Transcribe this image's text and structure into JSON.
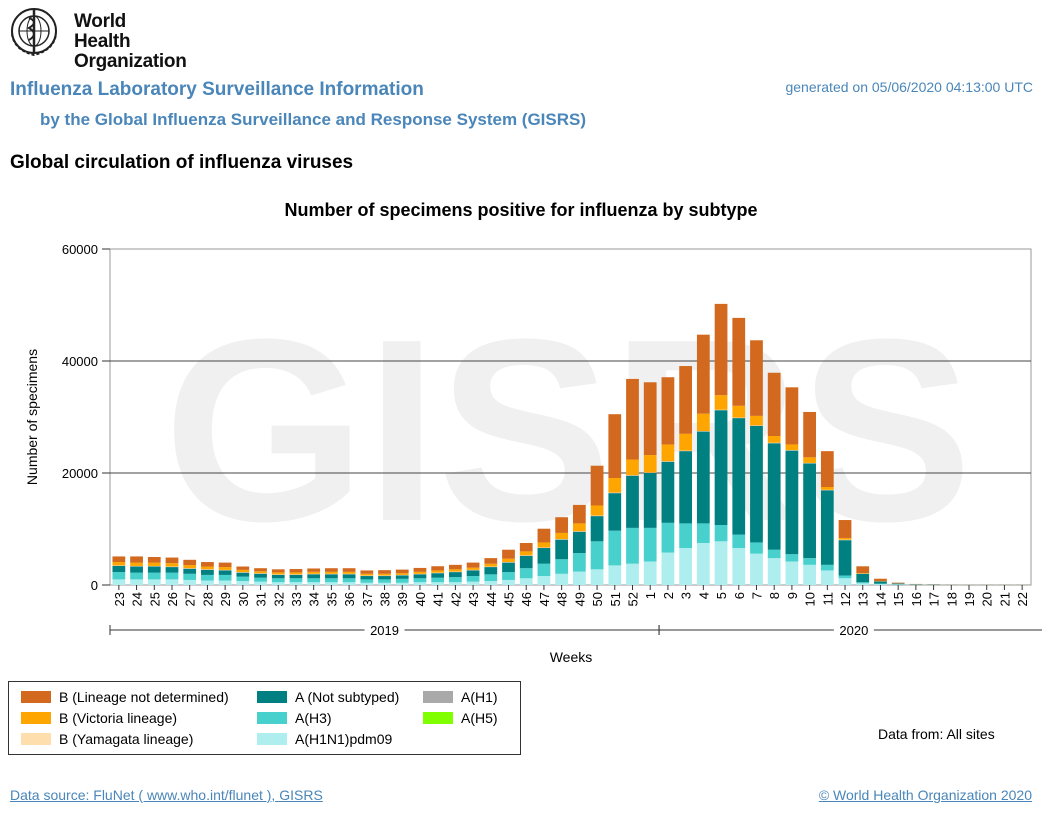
{
  "header": {
    "logo_text_line1": "World Health",
    "logo_text_line2": "Organization",
    "title": "Influenza Laboratory Surveillance Information",
    "subtitle": "by the Global Influenza Surveillance and Response System (GISRS)",
    "generated": "generated on 05/06/2020 04:13:00 UTC",
    "section_title": "Global circulation of influenza viruses"
  },
  "watermark": "GISRS",
  "legend": {
    "items": [
      {
        "label": "B (Lineage not determined)",
        "color": "#d2691e"
      },
      {
        "label": "B (Victoria lineage)",
        "color": "#ffa500"
      },
      {
        "label": "B (Yamagata lineage)",
        "color": "#ffdead"
      },
      {
        "label": "A (Not subtyped)",
        "color": "#008080"
      },
      {
        "label": "A(H3)",
        "color": "#48d1cc"
      },
      {
        "label": "A(H1N1)pdm09",
        "color": "#afeeee"
      },
      {
        "label": "A(H1)",
        "color": "#a9a9a9"
      },
      {
        "label": "A(H5)",
        "color": "#7fff00"
      }
    ]
  },
  "footer": {
    "data_from": "Data from: All sites",
    "source": "Data source: FluNet ( www.who.int/flunet ), GISRS",
    "copyright": "© World Health Organization 2020"
  },
  "chart_data": {
    "type": "bar",
    "stacked": true,
    "title": "Number of specimens positive for influenza by subtype",
    "xlabel": "Weeks",
    "ylabel": "Number of specimens",
    "ylim": [
      0,
      60000
    ],
    "yticks": [
      0,
      20000,
      40000,
      60000
    ],
    "grid": true,
    "year_groups": [
      {
        "label": "2019",
        "start": 0,
        "end": 30
      },
      {
        "label": "2020",
        "start": 31,
        "end": 52
      }
    ],
    "categories": [
      "23",
      "24",
      "25",
      "26",
      "27",
      "28",
      "29",
      "30",
      "31",
      "32",
      "33",
      "34",
      "35",
      "36",
      "37",
      "38",
      "39",
      "40",
      "41",
      "42",
      "43",
      "44",
      "45",
      "46",
      "47",
      "48",
      "49",
      "50",
      "51",
      "52",
      "1",
      "2",
      "3",
      "4",
      "5",
      "6",
      "7",
      "8",
      "9",
      "10",
      "11",
      "12",
      "13",
      "14",
      "15",
      "16",
      "17",
      "18",
      "19",
      "20",
      "21",
      "22"
    ],
    "series": [
      {
        "name": "A(H1N1)pdm09",
        "color": "#afeeee",
        "values": [
          1000,
          1000,
          1000,
          1000,
          900,
          800,
          800,
          700,
          600,
          500,
          500,
          500,
          500,
          500,
          400,
          400,
          400,
          500,
          500,
          500,
          600,
          700,
          900,
          1200,
          1600,
          2000,
          2400,
          2800,
          3500,
          3800,
          4200,
          5800,
          6600,
          7500,
          7800,
          6600,
          5600,
          4800,
          4200,
          3600,
          2600,
          1200,
          300,
          150,
          80,
          40,
          30,
          20,
          20,
          10,
          10,
          10
        ]
      },
      {
        "name": "A(H3)",
        "color": "#48d1cc",
        "values": [
          1300,
          1200,
          1200,
          1200,
          1100,
          1000,
          1000,
          800,
          700,
          700,
          700,
          700,
          700,
          700,
          600,
          600,
          700,
          700,
          800,
          900,
          1000,
          1200,
          1400,
          1800,
          2200,
          2600,
          3300,
          5000,
          6200,
          6400,
          6000,
          5300,
          4400,
          3500,
          2900,
          2400,
          2000,
          1500,
          1300,
          1200,
          1000,
          500,
          200,
          100,
          60,
          30,
          20,
          10,
          10,
          10,
          10,
          10
        ]
      },
      {
        "name": "A (Not subtyped)",
        "color": "#008080",
        "values": [
          1100,
          1100,
          1100,
          1000,
          900,
          900,
          800,
          700,
          700,
          600,
          600,
          700,
          700,
          700,
          600,
          600,
          600,
          700,
          800,
          900,
          1000,
          1300,
          1700,
          2200,
          2800,
          3500,
          3800,
          4500,
          6700,
          9300,
          9800,
          10900,
          12900,
          16400,
          20500,
          20800,
          20800,
          19000,
          18500,
          16900,
          13300,
          6300,
          1500,
          400,
          120,
          60,
          40,
          30,
          20,
          20,
          20,
          20
        ]
      },
      {
        "name": "A(H1)",
        "color": "#a9a9a9",
        "values": [
          50,
          50,
          50,
          50,
          50,
          50,
          50,
          50,
          50,
          50,
          50,
          50,
          50,
          50,
          50,
          50,
          50,
          50,
          50,
          50,
          50,
          50,
          50,
          50,
          50,
          50,
          50,
          50,
          50,
          50,
          50,
          50,
          50,
          50,
          50,
          50,
          50,
          50,
          50,
          50,
          50,
          50,
          20,
          10,
          10,
          0,
          0,
          0,
          0,
          0,
          0,
          0
        ]
      },
      {
        "name": "A(H5)",
        "color": "#7fff00",
        "values": [
          0,
          0,
          0,
          0,
          0,
          0,
          0,
          0,
          0,
          0,
          0,
          0,
          0,
          0,
          0,
          0,
          0,
          0,
          0,
          0,
          0,
          0,
          0,
          0,
          0,
          0,
          0,
          0,
          0,
          0,
          0,
          0,
          0,
          0,
          0,
          0,
          0,
          0,
          0,
          0,
          0,
          0,
          0,
          0,
          0,
          0,
          0,
          0,
          0,
          0,
          0,
          0
        ]
      },
      {
        "name": "B (Yamagata lineage)",
        "color": "#ffdead",
        "values": [
          50,
          50,
          50,
          50,
          50,
          50,
          50,
          50,
          50,
          50,
          50,
          50,
          50,
          50,
          50,
          50,
          50,
          50,
          50,
          50,
          50,
          50,
          50,
          50,
          50,
          50,
          50,
          50,
          50,
          50,
          50,
          50,
          50,
          50,
          50,
          50,
          50,
          50,
          50,
          50,
          50,
          50,
          20,
          10,
          10,
          10,
          10,
          0,
          0,
          0,
          0,
          0
        ]
      },
      {
        "name": "B (Victoria lineage)",
        "color": "#ffa500",
        "values": [
          600,
          600,
          600,
          600,
          550,
          500,
          500,
          400,
          350,
          350,
          350,
          350,
          350,
          350,
          300,
          300,
          300,
          350,
          400,
          400,
          400,
          500,
          600,
          700,
          900,
          1100,
          1400,
          1800,
          2600,
          2800,
          3100,
          3000,
          3000,
          3100,
          2600,
          2100,
          1700,
          1200,
          1000,
          1000,
          500,
          300,
          100,
          50,
          20,
          10,
          10,
          10,
          10,
          10,
          10,
          10
        ]
      },
      {
        "name": "B (Lineage not determined)",
        "color": "#d2691e",
        "values": [
          1000,
          1100,
          1000,
          1000,
          950,
          800,
          800,
          600,
          550,
          550,
          600,
          600,
          650,
          650,
          600,
          650,
          650,
          700,
          750,
          800,
          900,
          1000,
          1600,
          1500,
          2450,
          2800,
          3300,
          7100,
          11400,
          14400,
          13000,
          12000,
          12100,
          14100,
          16300,
          15700,
          13500,
          11300,
          10200,
          8100,
          6400,
          3200,
          1200,
          400,
          120,
          40,
          30,
          20,
          20,
          20,
          20,
          20
        ]
      }
    ]
  }
}
